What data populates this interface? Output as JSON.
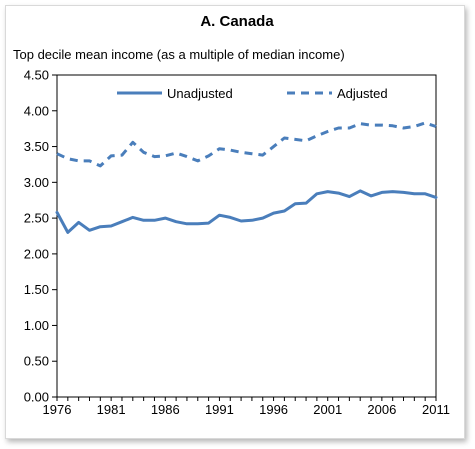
{
  "chart_data": {
    "type": "line",
    "title": "A. Canada",
    "ylabel": "Top decile mean income (as a multiple of median income)",
    "xlabel": "",
    "ylim": [
      0,
      4.5
    ],
    "xlim": [
      1976,
      2011
    ],
    "yticks": [
      "0.00",
      "0.50",
      "1.00",
      "1.50",
      "2.00",
      "2.50",
      "3.00",
      "3.50",
      "4.00",
      "4.50"
    ],
    "xticks": [
      "1976",
      "1981",
      "1986",
      "1991",
      "1996",
      "2001",
      "2006",
      "2011"
    ],
    "grid": "none",
    "legend_position": "top",
    "x": [
      1976,
      1977,
      1978,
      1979,
      1980,
      1981,
      1982,
      1983,
      1984,
      1985,
      1986,
      1987,
      1988,
      1989,
      1990,
      1991,
      1992,
      1993,
      1994,
      1995,
      1996,
      1997,
      1998,
      1999,
      2000,
      2001,
      2002,
      2003,
      2004,
      2005,
      2006,
      2007,
      2008,
      2009,
      2010,
      2011
    ],
    "series": [
      {
        "name": "Unadjusted",
        "style": "solid",
        "color": "#4a7ebb",
        "values": [
          2.58,
          2.3,
          2.44,
          2.33,
          2.38,
          2.39,
          2.45,
          2.51,
          2.47,
          2.47,
          2.5,
          2.45,
          2.42,
          2.42,
          2.43,
          2.54,
          2.51,
          2.46,
          2.47,
          2.5,
          2.57,
          2.6,
          2.7,
          2.71,
          2.84,
          2.87,
          2.85,
          2.8,
          2.88,
          2.81,
          2.86,
          2.87,
          2.86,
          2.84,
          2.84,
          2.79
        ]
      },
      {
        "name": "Adjusted",
        "style": "dashed",
        "color": "#4a7ebb",
        "values": [
          3.4,
          3.33,
          3.3,
          3.3,
          3.23,
          3.37,
          3.38,
          3.56,
          3.42,
          3.36,
          3.37,
          3.41,
          3.36,
          3.3,
          3.37,
          3.47,
          3.45,
          3.42,
          3.4,
          3.38,
          3.5,
          3.62,
          3.6,
          3.58,
          3.65,
          3.71,
          3.76,
          3.76,
          3.82,
          3.8,
          3.8,
          3.79,
          3.76,
          3.78,
          3.83,
          3.78
        ]
      }
    ]
  }
}
